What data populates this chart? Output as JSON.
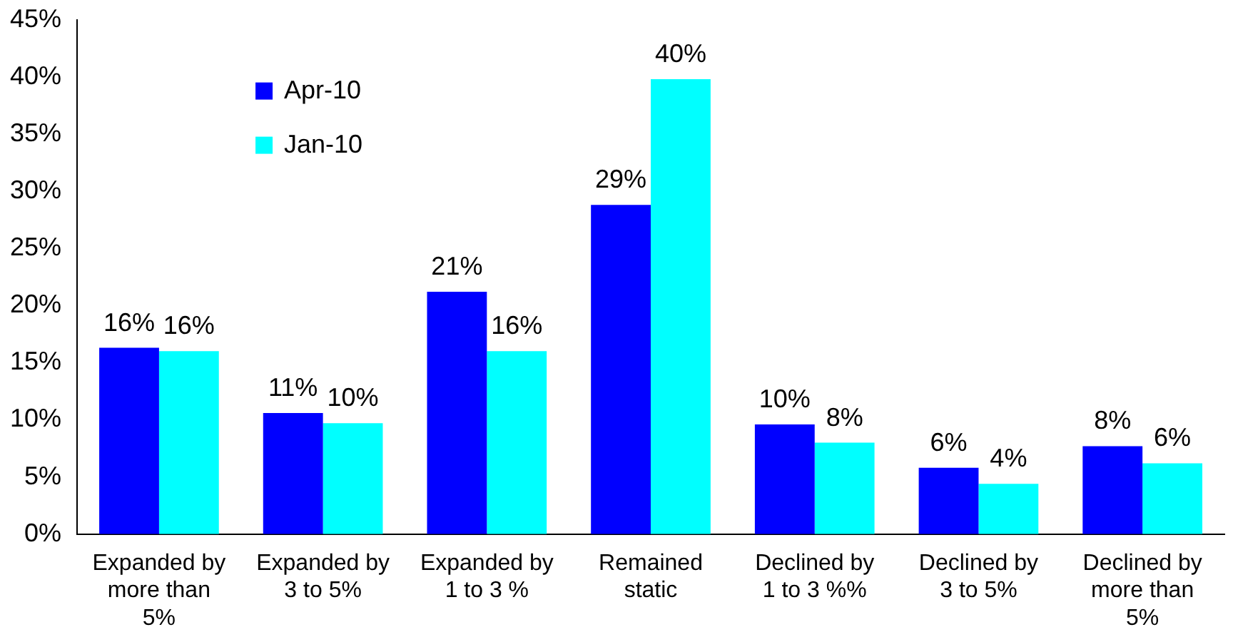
{
  "chart_data": {
    "type": "bar",
    "categories": [
      "Expanded by more than 5%",
      "Expanded by 3 to 5%",
      "Expanded by 1 to 3 %",
      "Remained static",
      "Declined by 1 to 3 %%",
      "Declined by 3 to 5%",
      "Declined by more than 5%"
    ],
    "series": [
      {
        "name": "Apr-10",
        "color": "#0000ff",
        "values": [
          16.3,
          10.6,
          21.2,
          28.8,
          9.6,
          5.8,
          7.7
        ],
        "value_labels": [
          "16%",
          "11%",
          "21%",
          "29%",
          "10%",
          "6%",
          "8%"
        ]
      },
      {
        "name": "Jan-10",
        "color": "#00ffff",
        "values": [
          16,
          9.7,
          16,
          39.8,
          8,
          4.4,
          6.2
        ],
        "value_labels": [
          "16%",
          "10%",
          "16%",
          "40%",
          "8%",
          "4%",
          "6%"
        ]
      }
    ],
    "ylim": [
      0,
      45
    ],
    "yticks": [
      {
        "value": 0,
        "label": "0%"
      },
      {
        "value": 5,
        "label": "5%"
      },
      {
        "value": 10,
        "label": "10%"
      },
      {
        "value": 15,
        "label": "15%"
      },
      {
        "value": 20,
        "label": "20%"
      },
      {
        "value": 25,
        "label": "25%"
      },
      {
        "value": 30,
        "label": "30%"
      },
      {
        "value": 35,
        "label": "35%"
      },
      {
        "value": 40,
        "label": "40%"
      },
      {
        "value": 45,
        "label": "45%"
      }
    ],
    "legend": "top left",
    "grid": false
  }
}
